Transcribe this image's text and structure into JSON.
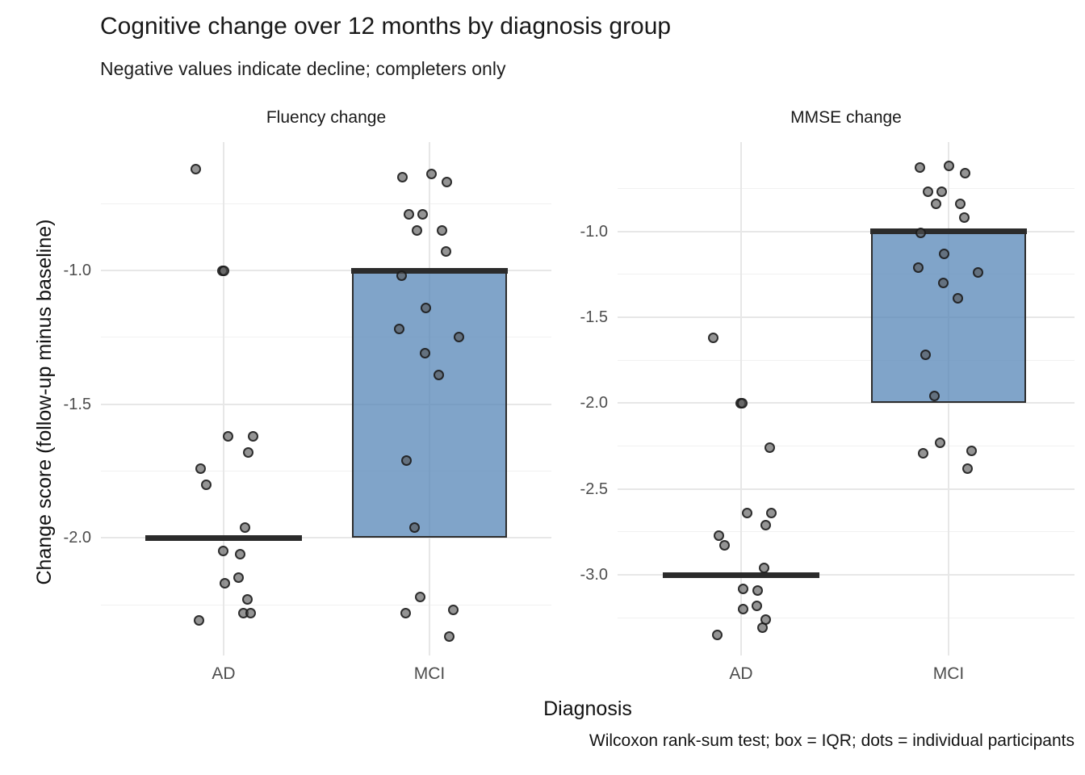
{
  "title": "Cognitive change over 12 months by diagnosis group",
  "subtitle": "Negative values indicate decline; completers only",
  "caption": "Wilcoxon rank-sum test; box = IQR; dots = individual participants",
  "axes": {
    "x_title": "Diagnosis",
    "y_title": "Change score (follow-up minus baseline)"
  },
  "colors": {
    "box_fill": "rgba(86,133,183,0.75)",
    "box_border": "#2d2d2d",
    "median_line": "#2b2b2b",
    "point_fill": "rgba(82,82,82,0.62)",
    "point_border": "rgba(20,20,20,0.8)",
    "grid_major": "#e7e7e7",
    "grid_minor": "#f1f1f1",
    "tick_text": "#4d4d4d",
    "title_text": "#191919"
  },
  "chart_data": {
    "type": "faceted-jitter-boxplot",
    "x_categories": [
      "AD",
      "MCI"
    ],
    "legend": "none",
    "grid": "on",
    "facets": [
      {
        "label": "Fluency change",
        "ylim": [
          -2.44,
          -0.52
        ],
        "y_ticks": [
          {
            "v": -1.0,
            "label": "-1.0"
          },
          {
            "v": -1.5,
            "label": "-1.5"
          },
          {
            "v": -2.0,
            "label": "-2.0"
          }
        ],
        "y_minor_ticks": [
          -0.75,
          -1.25,
          -1.75,
          -2.25
        ],
        "groups": [
          {
            "category": "AD",
            "box": {
              "q1": -2.0,
              "median": -2.0,
              "q3": -2.0
            },
            "points": [
              {
                "v": -0.62,
                "dx": -35
              },
              {
                "v": -1.0,
                "dx": -2
              },
              {
                "v": -1.0,
                "dx": 0
              },
              {
                "v": -1.62,
                "dx": 5
              },
              {
                "v": -1.62,
                "dx": 36
              },
              {
                "v": -1.68,
                "dx": 30
              },
              {
                "v": -1.74,
                "dx": -29
              },
              {
                "v": -1.8,
                "dx": -22
              },
              {
                "v": -1.96,
                "dx": 26
              },
              {
                "v": -2.05,
                "dx": -1
              },
              {
                "v": -2.06,
                "dx": 20
              },
              {
                "v": -2.15,
                "dx": 18
              },
              {
                "v": -2.17,
                "dx": 1
              },
              {
                "v": -2.23,
                "dx": 29
              },
              {
                "v": -2.28,
                "dx": 24
              },
              {
                "v": -2.28,
                "dx": 33
              },
              {
                "v": -2.31,
                "dx": -31
              }
            ]
          },
          {
            "category": "MCI",
            "box": {
              "q1": -2.0,
              "median": -1.0,
              "q3": -1.0
            },
            "points": [
              {
                "v": -0.64,
                "dx": 2
              },
              {
                "v": -0.65,
                "dx": -34
              },
              {
                "v": -0.67,
                "dx": 21
              },
              {
                "v": -0.79,
                "dx": -26
              },
              {
                "v": -0.79,
                "dx": -9
              },
              {
                "v": -0.85,
                "dx": -16
              },
              {
                "v": -0.85,
                "dx": 15
              },
              {
                "v": -0.93,
                "dx": 20
              },
              {
                "v": -1.02,
                "dx": -35
              },
              {
                "v": -1.14,
                "dx": -5
              },
              {
                "v": -1.22,
                "dx": -38
              },
              {
                "v": -1.25,
                "dx": 36
              },
              {
                "v": -1.31,
                "dx": -6
              },
              {
                "v": -1.39,
                "dx": 11
              },
              {
                "v": -1.71,
                "dx": -29
              },
              {
                "v": -1.96,
                "dx": -19
              },
              {
                "v": -2.22,
                "dx": -12
              },
              {
                "v": -2.27,
                "dx": 29
              },
              {
                "v": -2.28,
                "dx": -30
              },
              {
                "v": -2.37,
                "dx": 24
              }
            ]
          }
        ]
      },
      {
        "label": "MMSE change",
        "ylim": [
          -3.47,
          -0.48
        ],
        "y_ticks": [
          {
            "v": -1.0,
            "label": "-1.0"
          },
          {
            "v": -1.5,
            "label": "-1.5"
          },
          {
            "v": -2.0,
            "label": "-2.0"
          },
          {
            "v": -2.5,
            "label": "-2.5"
          },
          {
            "v": -3.0,
            "label": "-3.0"
          }
        ],
        "y_minor_ticks": [
          -0.75,
          -1.25,
          -1.75,
          -2.25,
          -2.75,
          -3.25
        ],
        "groups": [
          {
            "category": "AD",
            "box": {
              "q1": -3.0,
              "median": -3.0,
              "q3": -3.0
            },
            "points": [
              {
                "v": -1.62,
                "dx": -35
              },
              {
                "v": -2.0,
                "dx": -1
              },
              {
                "v": -2.0,
                "dx": 1
              },
              {
                "v": -2.26,
                "dx": 35
              },
              {
                "v": -2.64,
                "dx": 7
              },
              {
                "v": -2.64,
                "dx": 37
              },
              {
                "v": -2.71,
                "dx": 30
              },
              {
                "v": -2.77,
                "dx": -28
              },
              {
                "v": -2.83,
                "dx": -21
              },
              {
                "v": -2.96,
                "dx": 28
              },
              {
                "v": -3.08,
                "dx": 2
              },
              {
                "v": -3.09,
                "dx": 20
              },
              {
                "v": -3.18,
                "dx": 19
              },
              {
                "v": -3.2,
                "dx": 2
              },
              {
                "v": -3.26,
                "dx": 30
              },
              {
                "v": -3.31,
                "dx": 26
              },
              {
                "v": -3.35,
                "dx": -30
              }
            ]
          },
          {
            "category": "MCI",
            "box": {
              "q1": -2.0,
              "median": -1.0,
              "q3": -1.0
            },
            "points": [
              {
                "v": -0.62,
                "dx": 0
              },
              {
                "v": -0.63,
                "dx": -36
              },
              {
                "v": -0.66,
                "dx": 20
              },
              {
                "v": -0.77,
                "dx": -26
              },
              {
                "v": -0.77,
                "dx": -9
              },
              {
                "v": -0.84,
                "dx": -16
              },
              {
                "v": -0.84,
                "dx": 14
              },
              {
                "v": -0.92,
                "dx": 19
              },
              {
                "v": -1.01,
                "dx": -35
              },
              {
                "v": -1.13,
                "dx": -6
              },
              {
                "v": -1.21,
                "dx": -38
              },
              {
                "v": -1.24,
                "dx": 36
              },
              {
                "v": -1.3,
                "dx": -7
              },
              {
                "v": -1.39,
                "dx": 11
              },
              {
                "v": -1.72,
                "dx": -29
              },
              {
                "v": -1.96,
                "dx": -18
              },
              {
                "v": -2.23,
                "dx": -11
              },
              {
                "v": -2.29,
                "dx": -32
              },
              {
                "v": -2.28,
                "dx": 28
              },
              {
                "v": -2.38,
                "dx": 23
              }
            ]
          }
        ]
      }
    ]
  }
}
